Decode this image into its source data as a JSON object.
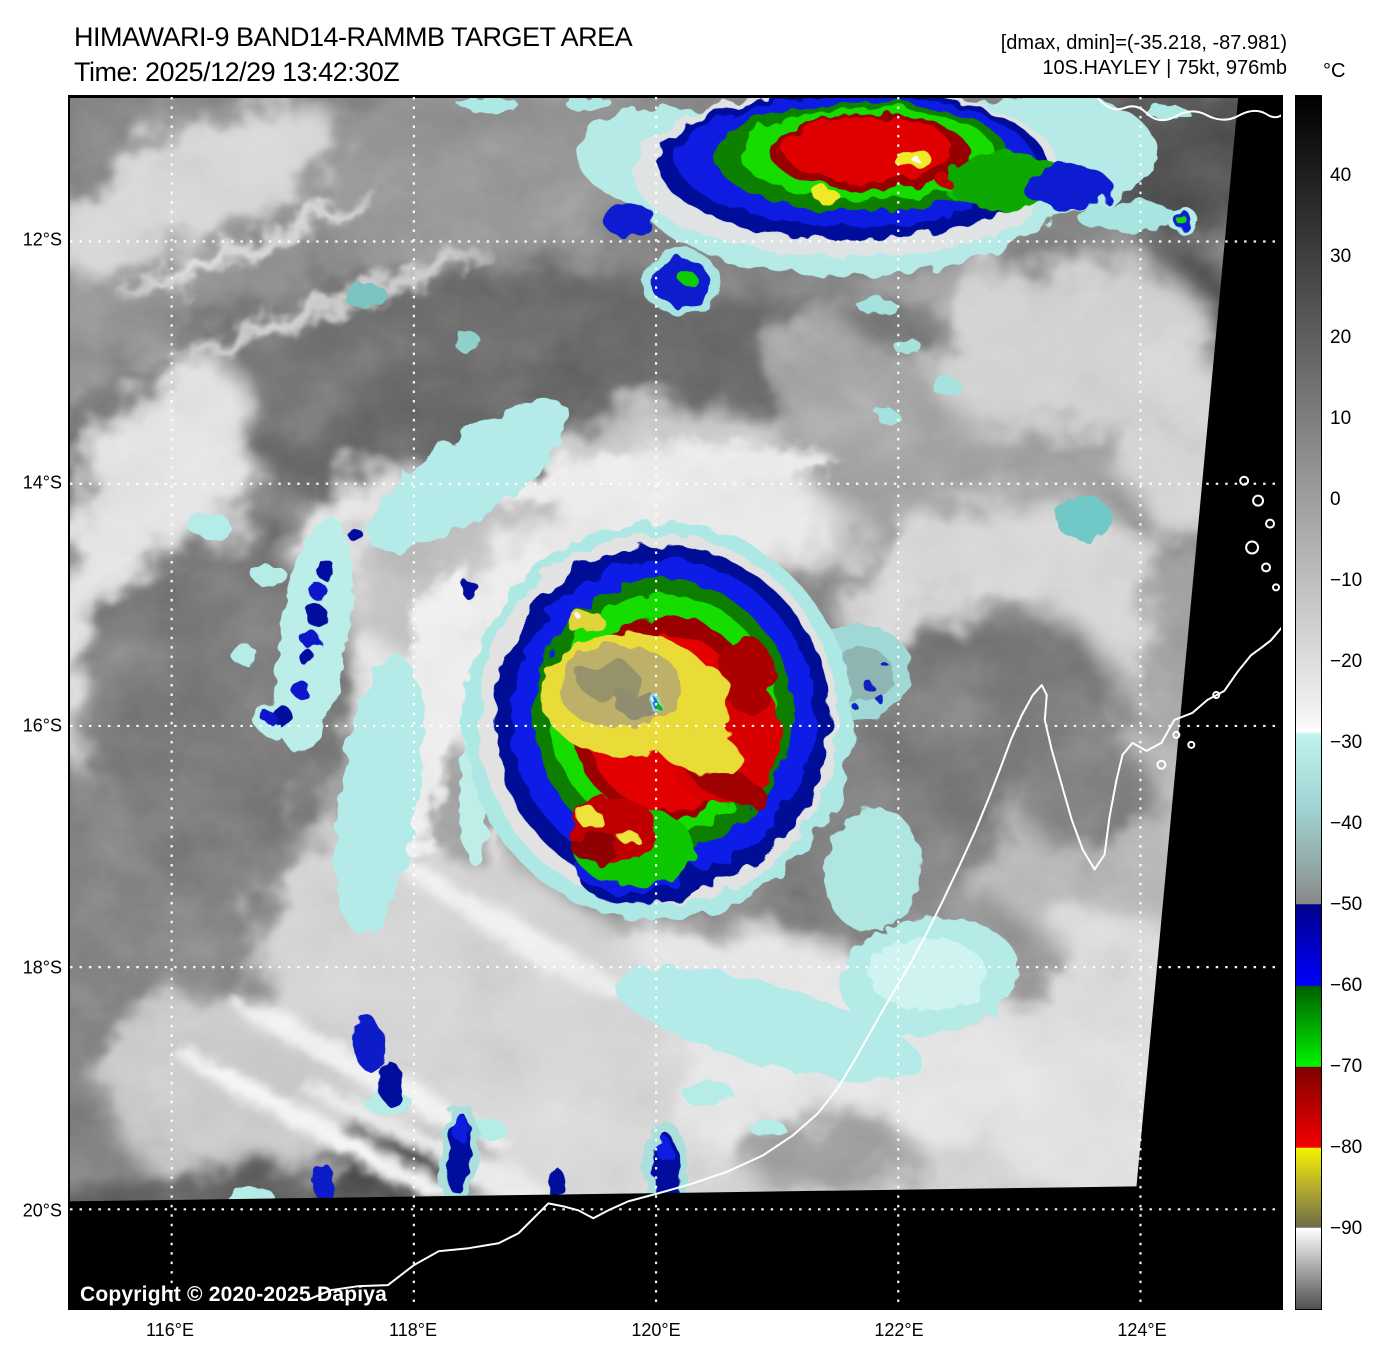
{
  "header": {
    "title": "HIMAWARI-9 BAND14-RAMMB TARGET AREA",
    "time_line": "Time: 2025/12/29 13:42:30Z",
    "dmax_dmin": "[dmax, dmin]=(-35.218, -87.981)",
    "storm_line": "10S.HAYLEY | 75kt, 976mb"
  },
  "storm": {
    "name": "10S.HAYLEY",
    "intensity": "75kt",
    "pressure": "976mb",
    "satellite": "HIMAWARI-9",
    "band": "BAND14"
  },
  "map": {
    "copyright": "Copyright © 2020-2025 Dapiya",
    "grid_color": "#ffffff",
    "no_data_color": "#000000",
    "coastline_color": "#ffffff",
    "x_tick_labels": [
      "116°E",
      "118°E",
      "120°E",
      "122°E",
      "124°E"
    ],
    "y_tick_labels": [
      "12°S",
      "14°S",
      "16°S",
      "18°S",
      "20°S"
    ]
  },
  "colorbar": {
    "unit": "°C",
    "range": [
      50,
      -100
    ],
    "tick_values": [
      40,
      30,
      20,
      10,
      0,
      -10,
      -20,
      -30,
      -40,
      -50,
      -60,
      -70,
      -80,
      -90
    ],
    "tick_labels": [
      "40",
      "30",
      "20",
      "10",
      "0",
      "−10",
      "−20",
      "−30",
      "−40",
      "−50",
      "−60",
      "−70",
      "−80",
      "−90"
    ],
    "stops": [
      {
        "t": 50,
        "c": "#000000"
      },
      {
        "t": -27,
        "c": "#f4f4f4"
      },
      {
        "t": -28.5,
        "c": "#ffffff"
      },
      {
        "t": -29,
        "c": "#bff2ee"
      },
      {
        "t": -38,
        "c": "#9fd4d2"
      },
      {
        "t": -47,
        "c": "#8f9e9c"
      },
      {
        "t": -49.9,
        "c": "#878787"
      },
      {
        "t": -50,
        "c": "#00008b"
      },
      {
        "t": -60,
        "c": "#0000ff"
      },
      {
        "t": -60.1,
        "c": "#005f00"
      },
      {
        "t": -70,
        "c": "#00f400"
      },
      {
        "t": -70.1,
        "c": "#800000"
      },
      {
        "t": -80,
        "c": "#f40000"
      },
      {
        "t": -80.1,
        "c": "#f4f400"
      },
      {
        "t": -85,
        "c": "#b5ab2e"
      },
      {
        "t": -89.9,
        "c": "#6d6d4a"
      },
      {
        "t": -90,
        "c": "#ffffff"
      },
      {
        "t": -100,
        "c": "#505050"
      }
    ]
  }
}
